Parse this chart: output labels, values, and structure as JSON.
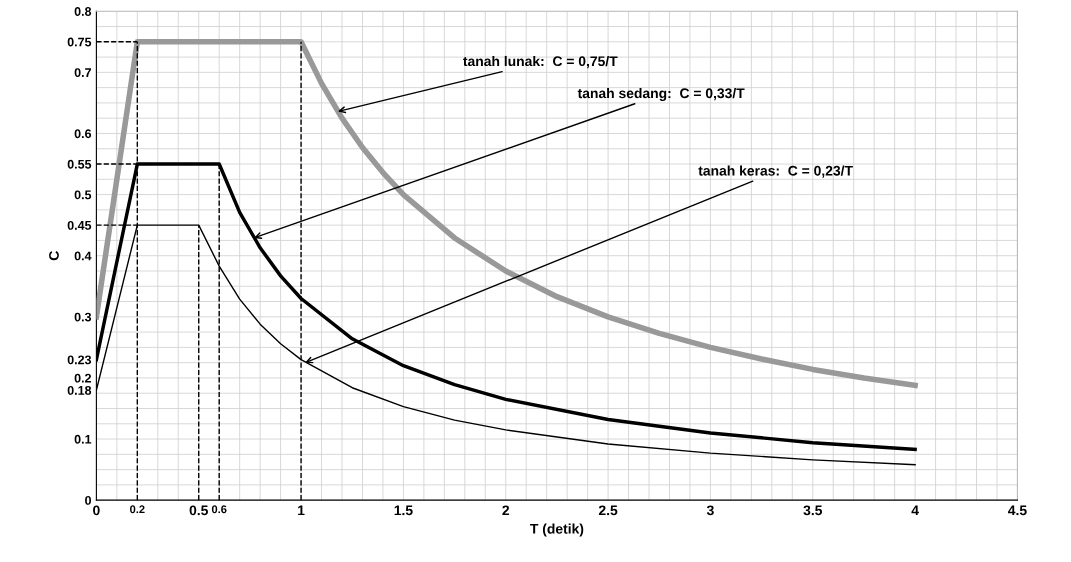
{
  "chart_data": {
    "type": "line",
    "xlabel": "T (detik)",
    "ylabel": "C",
    "xlim": [
      0,
      4.5
    ],
    "ylim": [
      0,
      0.8
    ],
    "xticks": [
      0,
      0.2,
      0.5,
      0.6,
      1,
      1.5,
      2,
      2.5,
      3,
      3.5,
      4,
      4.5
    ],
    "yticks": [
      0,
      0.1,
      0.18,
      0.2,
      0.23,
      0.3,
      0.4,
      0.45,
      0.5,
      0.55,
      0.6,
      0.7,
      0.75,
      0.8
    ],
    "grid": true,
    "marker": "none",
    "line_style": "solid",
    "series": [
      {
        "color": "#999999",
        "x": [
          0,
          0.2,
          1,
          1.1,
          1.2,
          1.3,
          1.4,
          1.5,
          1.75,
          2,
          2.25,
          2.5,
          2.75,
          3,
          3.25,
          3.5,
          3.75,
          4
        ],
        "values": [
          0.3,
          0.75,
          0.75,
          0.682,
          0.625,
          0.577,
          0.536,
          0.5,
          0.429,
          0.375,
          0.333,
          0.3,
          0.273,
          0.25,
          0.231,
          0.214,
          0.2,
          0.188
        ]
      },
      {
        "color": "#000000",
        "x": [
          0,
          0.2,
          0.6,
          0.7,
          0.8,
          0.9,
          1,
          1.25,
          1.5,
          1.75,
          2,
          2.5,
          3,
          3.5,
          4
        ],
        "values": [
          0.23,
          0.55,
          0.55,
          0.471,
          0.413,
          0.367,
          0.33,
          0.264,
          0.22,
          0.189,
          0.165,
          0.132,
          0.11,
          0.094,
          0.083
        ]
      },
      {
        "color": "#000000",
        "x": [
          0,
          0.2,
          0.5,
          0.6,
          0.7,
          0.8,
          0.9,
          1,
          1.25,
          1.5,
          1.75,
          2,
          2.5,
          3,
          3.5,
          4
        ],
        "values": [
          0.18,
          0.45,
          0.45,
          0.383,
          0.329,
          0.288,
          0.256,
          0.23,
          0.184,
          0.153,
          0.131,
          0.115,
          0.092,
          0.077,
          0.066,
          0.058
        ]
      },
      {
        "color": "#000000",
        "line_style": "dashed",
        "x": [
          0.2,
          0.2
        ],
        "values": [
          0,
          0.75
        ]
      },
      {
        "color": "#000000",
        "line_style": "dashed",
        "x": [
          0.5,
          0.5
        ],
        "values": [
          0,
          0.45
        ]
      },
      {
        "color": "#000000",
        "line_style": "dashed",
        "x": [
          0.6,
          0.6
        ],
        "values": [
          0,
          0.55
        ]
      },
      {
        "color": "#000000",
        "line_style": "dashed",
        "x": [
          1,
          1
        ],
        "values": [
          0,
          0.75
        ]
      },
      {
        "color": "#000000",
        "line_style": "dashed",
        "x": [
          0,
          0.2
        ],
        "values": [
          0.75,
          0.75
        ]
      },
      {
        "color": "#000000",
        "line_style": "dashed",
        "x": [
          0,
          0.2
        ],
        "values": [
          0.55,
          0.55
        ]
      },
      {
        "color": "#000000",
        "line_style": "dashed",
        "x": [
          0,
          0.2
        ],
        "values": [
          0.45,
          0.45
        ]
      }
    ],
    "annotations": [
      {
        "text": "tanah lunak:  C = 0,75/T",
        "x": 1.18,
        "y": 0.636
      },
      {
        "text": "tanah sedang:  C = 0,33/T",
        "x": 0.77,
        "y": 0.429
      },
      {
        "text": "tanah keras:  C = 0,23/T",
        "x": 1.02,
        "y": 0.225
      }
    ]
  }
}
